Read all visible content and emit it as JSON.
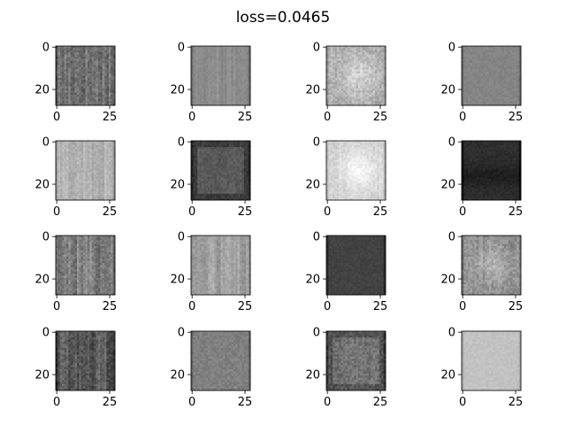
{
  "chart_data": {
    "type": "heatmap",
    "title": "loss=0.0465",
    "grid": false,
    "layout": "4x4 grid of grayscale image subplots",
    "axis_range": {
      "x": [
        0,
        27
      ],
      "y": [
        0,
        27
      ],
      "y_inverted": true
    },
    "x_ticks": [
      0,
      25
    ],
    "y_ticks": [
      0,
      20
    ],
    "x_tick_labels": [
      "0",
      "25"
    ],
    "y_tick_labels": [
      "0",
      "20"
    ],
    "panels": [
      {
        "mean_intensity": 0.45,
        "variation": "high",
        "texture": "vertical-stripes"
      },
      {
        "mean_intensity": 0.55,
        "variation": "low",
        "texture": "vertical-stripes"
      },
      {
        "mean_intensity": 0.68,
        "variation": "high",
        "texture": "bright-center"
      },
      {
        "mean_intensity": 0.52,
        "variation": "low",
        "texture": "smooth"
      },
      {
        "mean_intensity": 0.7,
        "variation": "medium",
        "texture": "vertical-stripes"
      },
      {
        "mean_intensity": 0.35,
        "variation": "medium",
        "texture": "dark-edges"
      },
      {
        "mean_intensity": 0.82,
        "variation": "medium",
        "texture": "bright-center"
      },
      {
        "mean_intensity": 0.18,
        "variation": "low",
        "texture": "dark-band"
      },
      {
        "mean_intensity": 0.5,
        "variation": "high",
        "texture": "vertical-stripes"
      },
      {
        "mean_intensity": 0.62,
        "variation": "medium",
        "texture": "vertical-stripes"
      },
      {
        "mean_intensity": 0.26,
        "variation": "low",
        "texture": "smooth"
      },
      {
        "mean_intensity": 0.55,
        "variation": "high",
        "texture": "bright-center"
      },
      {
        "mean_intensity": 0.35,
        "variation": "high",
        "texture": "vertical-stripes"
      },
      {
        "mean_intensity": 0.5,
        "variation": "medium",
        "texture": "smooth"
      },
      {
        "mean_intensity": 0.45,
        "variation": "high",
        "texture": "dark-edges"
      },
      {
        "mean_intensity": 0.76,
        "variation": "low",
        "texture": "smooth"
      }
    ]
  }
}
